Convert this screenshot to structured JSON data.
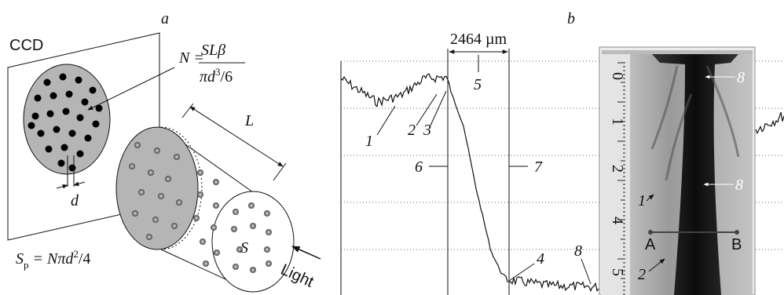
{
  "panel_a": {
    "label": "a",
    "ccd": "CCD",
    "formula_n": {
      "lhs": "N =",
      "numerator": "SLβ",
      "denominator": "πd",
      "denominator_power": "3",
      "denominator_rest": "/6"
    },
    "d": "d",
    "L": "L",
    "S": "S",
    "formula_sp": {
      "s": "S",
      "sub": "p",
      "rest": " = Nπd",
      "power": "2",
      "tail": "/4"
    },
    "light": "Light"
  },
  "panel_b": {
    "label": "b",
    "distance": "2464 µm",
    "markers": {
      "m1": "1",
      "m2": "2",
      "m3": "3",
      "m4": "4",
      "m5": "5",
      "m6": "6",
      "m7": "7",
      "m8": "8"
    },
    "inset": {
      "ruler": [
        "0",
        "1",
        "2",
        "4",
        "5"
      ],
      "top8": "8",
      "mid8": "8",
      "m1": "1",
      "m2": "2",
      "A": "A",
      "B": "B"
    }
  }
}
